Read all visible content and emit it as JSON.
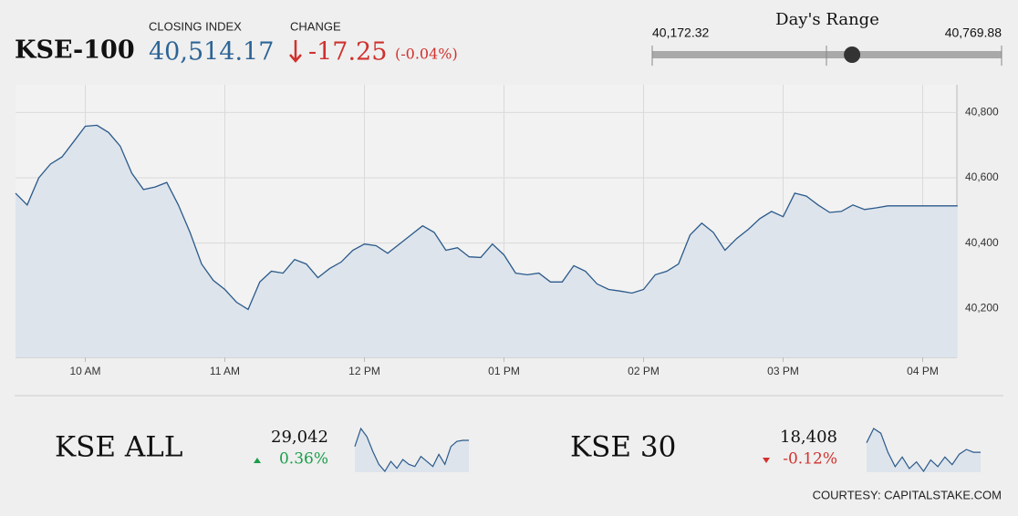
{
  "header": {
    "title": "KSE-100",
    "closing_label": "CLOSING INDEX",
    "closing": {
      "value": 40514.17,
      "label": "40,514.17"
    },
    "change_label": "CHANGE",
    "change": "-17.25",
    "change_percent": "(-0.04%)"
  },
  "day_range": {
    "label": "Day's Range",
    "low": {
      "value": 40172.32,
      "label": "40,172.32"
    },
    "high": {
      "value": 40769.88,
      "label": "40,769.88"
    }
  },
  "chart_data": {
    "type": "line",
    "color": "#2b5a8a",
    "fill": "#dde4ec",
    "grid": true,
    "categories": [
      null,
      null,
      null,
      null,
      null,
      null,
      "10 AM",
      null,
      null,
      null,
      null,
      null,
      null,
      null,
      null,
      null,
      null,
      null,
      "11 AM",
      null,
      null,
      null,
      null,
      null,
      null,
      null,
      null,
      null,
      null,
      null,
      "12 PM",
      null,
      null,
      null,
      null,
      null,
      null,
      null,
      null,
      null,
      null,
      null,
      "01 PM",
      null,
      null,
      null,
      null,
      null,
      null,
      null,
      null,
      null,
      null,
      null,
      "02 PM",
      null,
      null,
      null,
      null,
      null,
      null,
      null,
      null,
      null,
      null,
      null,
      "03 PM",
      null,
      null,
      null,
      null,
      null,
      null,
      null,
      null,
      null,
      null,
      null,
      "04 PM",
      null,
      null,
      null
    ],
    "values": [
      40553,
      40517,
      40600,
      40642,
      40664,
      40711,
      40758,
      40761,
      40739,
      40697,
      40614,
      40564,
      40572,
      40586,
      40517,
      40433,
      40336,
      40286,
      40258,
      40219,
      40197,
      40281,
      40314,
      40308,
      40350,
      40336,
      40294,
      40322,
      40342,
      40378,
      40397,
      40392,
      40369,
      40397,
      40425,
      40453,
      40433,
      40378,
      40386,
      40358,
      40356,
      40397,
      40364,
      40308,
      40303,
      40308,
      40281,
      40281,
      40331,
      40314,
      40275,
      40258,
      40253,
      40247,
      40258,
      40303,
      40314,
      40336,
      40425,
      40461,
      40433,
      40378,
      40414,
      40442,
      40475,
      40497,
      40481,
      40553,
      40544,
      40517,
      40494,
      40497,
      40517,
      40503,
      40508,
      40514,
      40514,
      40514,
      40514,
      40514,
      40514,
      40514
    ],
    "ylim": [
      40050,
      40885
    ],
    "yticks": [
      {
        "value": 40200,
        "label": "40,200"
      },
      {
        "value": 40400,
        "label": "40,400"
      },
      {
        "value": 40600,
        "label": "40,600"
      },
      {
        "value": 40800,
        "label": "40,800"
      }
    ]
  },
  "indices": [
    {
      "name": "KSE ALL",
      "value": "29,042",
      "change": "0.36%",
      "direction": "up",
      "color": "#1a9e4a",
      "spark": [
        29019,
        29086,
        29056,
        29001,
        28953,
        28927,
        28964,
        28938,
        28971,
        28953,
        28945,
        28982,
        28964,
        28945,
        28990,
        28953,
        29019,
        29038,
        29042,
        29042
      ]
    },
    {
      "name": "KSE 30",
      "value": "18,408",
      "change": "-0.12%",
      "direction": "down",
      "color": "#d0312d",
      "spark": [
        18438,
        18483,
        18468,
        18408,
        18363,
        18393,
        18357,
        18378,
        18348,
        18384,
        18363,
        18393,
        18369,
        18402,
        18417,
        18408,
        18408
      ]
    }
  ],
  "footer": {
    "credit": "COURTESY: CAPITALSTAKE.COM"
  }
}
